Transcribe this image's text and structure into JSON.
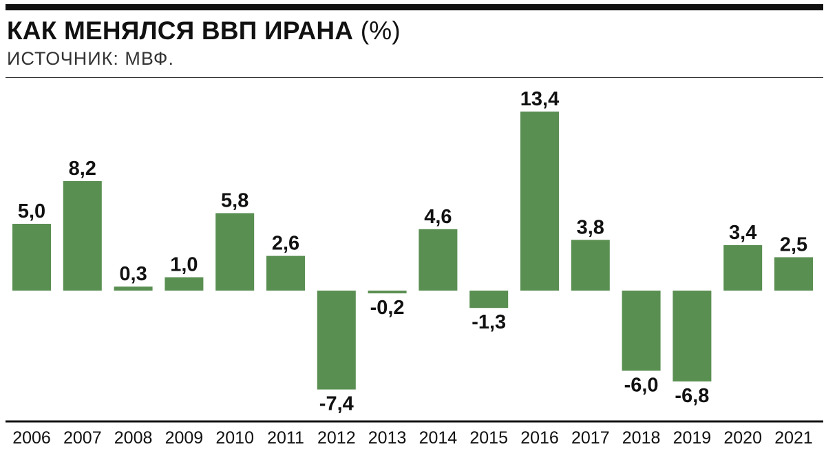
{
  "header": {
    "title": "КАК МЕНЯЛСЯ ВВП ИРАНА",
    "title_unit": "(%)",
    "source": "ИСТОЧНИК: МВФ."
  },
  "colors": {
    "bar": "#5a8f52",
    "text": "#111111",
    "rule": "#111111"
  },
  "chart_data": {
    "type": "bar",
    "title": "КАК МЕНЯЛСЯ ВВП ИРАНА (%)",
    "categories": [
      "2006",
      "2007",
      "2008",
      "2009",
      "2010",
      "2011",
      "2012",
      "2013",
      "2014",
      "2015",
      "2016",
      "2017",
      "2018",
      "2019",
      "2020",
      "2021"
    ],
    "values": [
      5.0,
      8.2,
      0.3,
      1.0,
      5.8,
      2.6,
      -7.4,
      -0.2,
      4.6,
      -1.3,
      13.4,
      3.8,
      -6.0,
      -6.8,
      3.4,
      2.5
    ],
    "value_labels": [
      "5,0",
      "8,2",
      "0,3",
      "1,0",
      "5,8",
      "2,6",
      "-7,4",
      "-0,2",
      "4,6",
      "-1,3",
      "13,4",
      "3,8",
      "-6,0",
      "-6,8",
      "3,4",
      "2,5"
    ],
    "xlabel": "",
    "ylabel": "",
    "grid": false,
    "legend": "none"
  }
}
